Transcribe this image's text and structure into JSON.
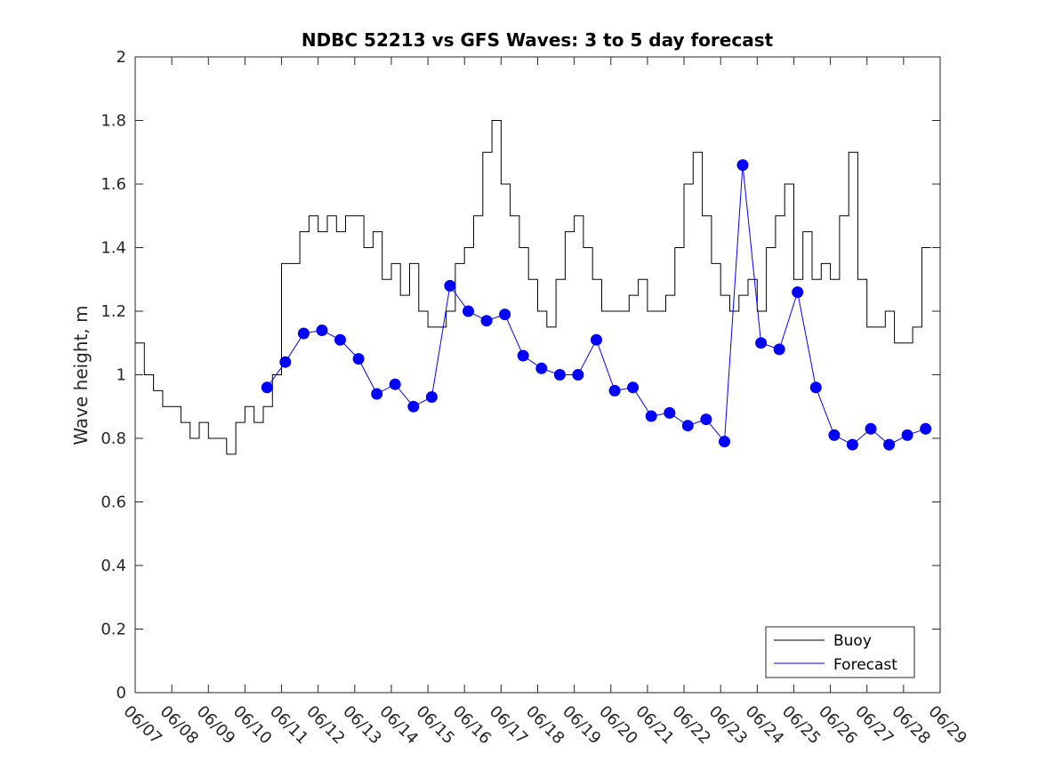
{
  "chart_data": {
    "type": "line",
    "title": "NDBC 52213 vs GFS Waves: 3 to 5 day forecast",
    "xlabel": "",
    "ylabel": "Wave height, m",
    "x_tick_labels": [
      "06/07",
      "06/08",
      "06/09",
      "06/10",
      "06/11",
      "06/12",
      "06/13",
      "06/14",
      "06/15",
      "06/16",
      "06/17",
      "06/18",
      "06/19",
      "06/20",
      "06/21",
      "06/22",
      "06/23",
      "06/24",
      "06/25",
      "06/26",
      "06/27",
      "06/28",
      "06/29"
    ],
    "xlim": [
      "06/07",
      "06/29"
    ],
    "ylim": [
      0,
      2
    ],
    "y_ticks": [
      "0",
      "0.2",
      "0.4",
      "0.6",
      "0.8",
      "1",
      "1.2",
      "1.4",
      "1.6",
      "1.8",
      "2"
    ],
    "grid": false,
    "legend": {
      "position": "bottom-right",
      "entries": [
        "Buoy",
        "Forecast"
      ]
    },
    "colors": {
      "buoy": "#000000",
      "forecast": "#0000ff",
      "axis": "#262626"
    },
    "series": [
      {
        "name": "Buoy",
        "style": "line",
        "x_dates": [
          "06/07",
          "06/07 06:00",
          "06/07 12:00",
          "06/07 18:00",
          "06/08",
          "06/08 06:00",
          "06/08 12:00",
          "06/08 18:00",
          "06/09",
          "06/09 06:00",
          "06/09 12:00",
          "06/09 18:00",
          "06/10",
          "06/10 06:00",
          "06/10 12:00",
          "06/10 18:00",
          "06/11",
          "06/11 06:00",
          "06/11 12:00",
          "06/11 18:00",
          "06/12",
          "06/12 06:00",
          "06/12 12:00",
          "06/12 18:00",
          "06/13",
          "06/13 06:00",
          "06/13 12:00",
          "06/13 18:00",
          "06/14",
          "06/14 06:00",
          "06/14 12:00",
          "06/14 18:00",
          "06/15",
          "06/15 06:00",
          "06/15 12:00",
          "06/15 18:00",
          "06/16",
          "06/16 06:00",
          "06/16 12:00",
          "06/16 18:00",
          "06/17",
          "06/17 06:00",
          "06/17 12:00",
          "06/17 18:00",
          "06/18",
          "06/18 06:00",
          "06/18 12:00",
          "06/18 18:00",
          "06/19",
          "06/19 06:00",
          "06/19 12:00",
          "06/19 18:00",
          "06/20",
          "06/20 06:00",
          "06/20 12:00",
          "06/20 18:00",
          "06/21",
          "06/21 06:00",
          "06/21 12:00",
          "06/21 18:00",
          "06/22",
          "06/22 06:00",
          "06/22 12:00",
          "06/22 18:00",
          "06/23",
          "06/23 06:00",
          "06/23 12:00",
          "06/23 18:00",
          "06/24",
          "06/24 06:00",
          "06/24 12:00",
          "06/24 18:00",
          "06/25",
          "06/25 06:00",
          "06/25 12:00",
          "06/25 18:00",
          "06/26",
          "06/26 06:00",
          "06/26 12:00",
          "06/26 18:00",
          "06/27",
          "06/27 06:00",
          "06/27 12:00",
          "06/27 18:00",
          "06/28",
          "06/28 06:00",
          "06/28 12:00",
          "06/28 18:00"
        ],
        "values": [
          1.1,
          1.0,
          0.95,
          0.9,
          0.9,
          0.85,
          0.8,
          0.85,
          0.8,
          0.8,
          0.75,
          0.85,
          0.9,
          0.85,
          0.9,
          1.0,
          1.35,
          1.35,
          1.45,
          1.5,
          1.45,
          1.5,
          1.45,
          1.5,
          1.5,
          1.4,
          1.45,
          1.3,
          1.35,
          1.25,
          1.35,
          1.2,
          1.15,
          1.15,
          1.2,
          1.35,
          1.4,
          1.5,
          1.7,
          1.8,
          1.6,
          1.5,
          1.4,
          1.3,
          1.2,
          1.15,
          1.3,
          1.45,
          1.5,
          1.4,
          1.3,
          1.2,
          1.2,
          1.2,
          1.25,
          1.3,
          1.2,
          1.2,
          1.25,
          1.4,
          1.6,
          1.7,
          1.5,
          1.35,
          1.25,
          1.2,
          1.25,
          1.3,
          1.2,
          1.4,
          1.5,
          1.6,
          1.3,
          1.45,
          1.3,
          1.35,
          1.3,
          1.5,
          1.7,
          1.3,
          1.15,
          1.15,
          1.2,
          1.1,
          1.1,
          1.15,
          1.4,
          1.4
        ]
      },
      {
        "name": "Forecast",
        "style": "markers",
        "x_dates": [
          "06/10 14:30",
          "06/11 02:30",
          "06/11 14:30",
          "06/12 02:30",
          "06/12 14:30",
          "06/13 02:30",
          "06/13 14:30",
          "06/14 02:30",
          "06/14 14:30",
          "06/15 02:30",
          "06/15 14:30",
          "06/16 02:30",
          "06/16 14:30",
          "06/17 02:30",
          "06/17 14:30",
          "06/18 02:30",
          "06/18 14:30",
          "06/19 02:30",
          "06/19 14:30",
          "06/20 02:30",
          "06/20 14:30",
          "06/21 02:30",
          "06/21 14:30",
          "06/22 02:30",
          "06/22 14:30",
          "06/23 02:30",
          "06/23 14:30",
          "06/24 02:30",
          "06/24 14:30",
          "06/25 02:30",
          "06/25 14:30",
          "06/26 02:30",
          "06/26 14:30",
          "06/27 02:30",
          "06/27 14:30",
          "06/28 02:30",
          "06/28 14:30"
        ],
        "values": [
          0.96,
          1.04,
          1.13,
          1.14,
          1.11,
          1.05,
          0.94,
          0.97,
          0.9,
          0.93,
          1.28,
          1.2,
          1.17,
          1.19,
          1.06,
          1.02,
          1.0,
          1.0,
          1.11,
          0.95,
          0.96,
          0.87,
          0.88,
          0.84,
          0.86,
          0.79,
          1.66,
          1.1,
          1.08,
          1.26,
          0.96,
          0.81,
          0.78,
          0.83,
          0.78,
          0.81,
          0.83
        ]
      }
    ]
  }
}
